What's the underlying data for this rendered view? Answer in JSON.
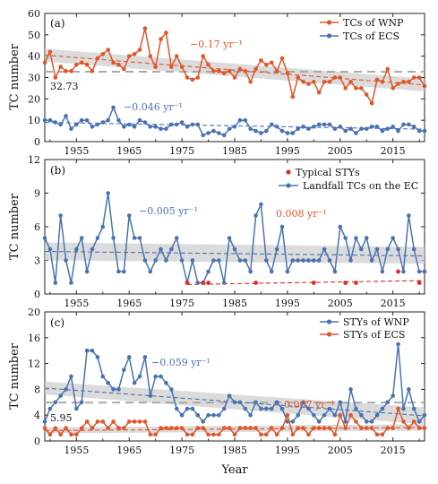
{
  "figure": {
    "x_label": "Year",
    "colors": {
      "orange": "#e0562a",
      "blue": "#4a72b0",
      "red": "#e02a2a",
      "gray_dash": "#a9a9a9",
      "band": "#cfcfcf"
    }
  },
  "chart_data": [
    {
      "type": "line",
      "panel_label": "(a)",
      "ylabel": "TC number",
      "xlim": [
        1949,
        2021
      ],
      "ylim": [
        0,
        60
      ],
      "yticks": [
        0,
        10,
        20,
        30,
        40,
        50,
        60
      ],
      "xticks": [
        1955,
        1965,
        1975,
        1985,
        1995,
        2005,
        2015
      ],
      "legend": {
        "position": "top-right"
      },
      "series": [
        {
          "name": "TCs of WNP",
          "color": "#e0562a",
          "x": [
            1949,
            1950,
            1951,
            1952,
            1953,
            1954,
            1955,
            1956,
            1957,
            1958,
            1959,
            1960,
            1961,
            1962,
            1963,
            1964,
            1965,
            1966,
            1967,
            1968,
            1969,
            1970,
            1971,
            1972,
            1973,
            1974,
            1975,
            1976,
            1977,
            1978,
            1979,
            1980,
            1981,
            1982,
            1983,
            1984,
            1985,
            1986,
            1987,
            1988,
            1989,
            1990,
            1991,
            1992,
            1993,
            1994,
            1995,
            1996,
            1997,
            1998,
            1999,
            2000,
            2001,
            2002,
            2003,
            2004,
            2005,
            2006,
            2007,
            2008,
            2009,
            2010,
            2011,
            2012,
            2013,
            2014,
            2015,
            2016,
            2017,
            2018,
            2019,
            2020,
            2021
          ],
          "y": [
            37,
            42,
            30,
            35,
            33,
            33,
            36,
            37,
            36,
            33,
            39,
            41,
            43,
            37,
            36,
            34,
            40,
            41,
            43,
            53,
            40,
            35,
            48,
            51,
            35,
            40,
            35,
            30,
            29,
            30,
            40,
            36,
            33,
            33,
            32,
            33,
            30,
            34,
            33,
            28,
            34,
            38,
            36,
            37,
            33,
            39,
            32,
            21,
            30,
            28,
            27,
            28,
            23,
            28,
            28,
            30,
            30,
            25,
            28,
            25,
            25,
            22,
            18,
            29,
            28,
            34,
            25,
            27,
            28,
            28,
            30,
            30,
            26
          ],
          "trend_label": "−0.17 yr⁻¹",
          "trend": [
            40.5,
            26.5
          ],
          "mean": 32.73,
          "band": [
            [
              37.5,
              43.5
            ],
            [
              23.5,
              29.5
            ]
          ]
        },
        {
          "name": "TCs of ECS",
          "color": "#4a72b0",
          "x": [
            1949,
            1950,
            1951,
            1952,
            1953,
            1954,
            1955,
            1956,
            1957,
            1958,
            1959,
            1960,
            1961,
            1962,
            1963,
            1964,
            1965,
            1966,
            1967,
            1968,
            1969,
            1970,
            1971,
            1972,
            1973,
            1974,
            1975,
            1976,
            1977,
            1978,
            1979,
            1980,
            1981,
            1982,
            1983,
            1984,
            1985,
            1986,
            1987,
            1988,
            1989,
            1990,
            1991,
            1992,
            1993,
            1994,
            1995,
            1996,
            1997,
            1998,
            1999,
            2000,
            2001,
            2002,
            2003,
            2004,
            2005,
            2006,
            2007,
            2008,
            2009,
            2010,
            2011,
            2012,
            2013,
            2014,
            2015,
            2016,
            2017,
            2018,
            2019,
            2020,
            2021
          ],
          "y": [
            10,
            10,
            9,
            8,
            12,
            6,
            8,
            10,
            10,
            7,
            8,
            9,
            10,
            16,
            10,
            7,
            8,
            7,
            10,
            9,
            7,
            7,
            6,
            6,
            8,
            8,
            9,
            7,
            8,
            8,
            3,
            4,
            5,
            4,
            3,
            6,
            7,
            10,
            10,
            6,
            5,
            4,
            5,
            8,
            7,
            5,
            4,
            4,
            6,
            7,
            6,
            7,
            8,
            8,
            8,
            6,
            7,
            5,
            6,
            4,
            6,
            6,
            7,
            7,
            5,
            6,
            7,
            5,
            8,
            8,
            7,
            5,
            5
          ],
          "trend_label": "−0.046 yr⁻¹",
          "trend": [
            9,
            5.8
          ]
        }
      ]
    },
    {
      "type": "line",
      "panel_label": "(b)",
      "ylabel": "TC number",
      "xlim": [
        1949,
        2021
      ],
      "ylim": [
        0,
        12
      ],
      "yticks": [
        0,
        3,
        6,
        9,
        12
      ],
      "xticks": [
        1955,
        1965,
        1975,
        1985,
        1995,
        2005,
        2015
      ],
      "legend": {
        "position": "top-right"
      },
      "series": [
        {
          "name": "Landfall TCs on the EC",
          "color": "#4a72b0",
          "x": [
            1949,
            1950,
            1951,
            1952,
            1953,
            1954,
            1955,
            1956,
            1957,
            1958,
            1959,
            1960,
            1961,
            1962,
            1963,
            1964,
            1965,
            1966,
            1967,
            1968,
            1969,
            1970,
            1971,
            1972,
            1973,
            1974,
            1975,
            1976,
            1977,
            1978,
            1979,
            1980,
            1981,
            1982,
            1983,
            1984,
            1985,
            1986,
            1987,
            1988,
            1989,
            1990,
            1991,
            1992,
            1993,
            1994,
            1995,
            1996,
            1997,
            1998,
            1999,
            2000,
            2001,
            2002,
            2003,
            2004,
            2005,
            2006,
            2007,
            2008,
            2009,
            2010,
            2011,
            2012,
            2013,
            2014,
            2015,
            2016,
            2017,
            2018,
            2019,
            2020,
            2021
          ],
          "y": [
            5,
            4,
            1,
            7,
            3,
            1,
            4,
            5,
            2,
            4,
            5,
            6,
            9,
            5,
            2,
            2,
            7,
            5,
            5,
            3,
            2,
            3,
            4,
            3,
            4,
            5,
            3,
            1,
            3,
            1,
            1,
            2,
            3,
            3,
            1,
            5,
            4,
            3,
            3,
            2,
            7,
            8,
            3,
            2,
            4,
            6,
            2,
            3,
            3,
            3,
            3,
            3,
            3,
            4,
            3,
            2,
            6,
            5,
            3,
            5,
            4,
            5,
            3,
            4,
            2,
            4,
            5,
            4,
            2,
            7,
            4,
            2,
            2
          ],
          "trend_label": "−0.005 yr⁻¹",
          "trend": [
            3.8,
            3.4
          ],
          "band": [
            [
              3.0,
              4.6
            ],
            [
              2.7,
              4.2
            ]
          ]
        },
        {
          "name": "Typical STYs",
          "color": "#e02a2a",
          "marker_only": true,
          "x": [
            1976,
            1979,
            1980,
            1989,
            2000,
            2006,
            2008,
            2016,
            2020
          ],
          "y": [
            1,
            1,
            1,
            1,
            1,
            1,
            1,
            2,
            1
          ],
          "trend_label": "0.008 yr⁻¹",
          "trend_x": [
            1976,
            2021
          ],
          "trend": [
            0.85,
            1.2
          ]
        }
      ]
    },
    {
      "type": "line",
      "panel_label": "(c)",
      "ylabel": "TC number",
      "xlim": [
        1949,
        2021
      ],
      "ylim": [
        0,
        20
      ],
      "yticks": [
        0,
        4,
        8,
        12,
        16,
        20
      ],
      "xticks": [
        1955,
        1965,
        1975,
        1985,
        1995,
        2005,
        2015
      ],
      "legend": {
        "position": "top-right"
      },
      "series": [
        {
          "name": "STYs of WNP",
          "color": "#4a72b0",
          "x": [
            1949,
            1950,
            1951,
            1952,
            1953,
            1954,
            1955,
            1956,
            1957,
            1958,
            1959,
            1960,
            1961,
            1962,
            1963,
            1964,
            1965,
            1966,
            1967,
            1968,
            1969,
            1970,
            1971,
            1972,
            1973,
            1974,
            1975,
            1976,
            1977,
            1978,
            1979,
            1980,
            1981,
            1982,
            1983,
            1984,
            1985,
            1986,
            1987,
            1988,
            1989,
            1990,
            1991,
            1992,
            1993,
            1994,
            1995,
            1996,
            1997,
            1998,
            1999,
            2000,
            2001,
            2002,
            2003,
            2004,
            2005,
            2006,
            2007,
            2008,
            2009,
            2010,
            2011,
            2012,
            2013,
            2014,
            2015,
            2016,
            2017,
            2018,
            2019,
            2020,
            2021
          ],
          "y": [
            3,
            5,
            6,
            7,
            8,
            10,
            5,
            6,
            14,
            14,
            13,
            10,
            9,
            8,
            8,
            11,
            13,
            9,
            10,
            13,
            7,
            10,
            10,
            9,
            8,
            5,
            4,
            5,
            5,
            4,
            3,
            4,
            4,
            4,
            5,
            7,
            6,
            6,
            5,
            4,
            6,
            5,
            5,
            5,
            6,
            5,
            3,
            3,
            4,
            6,
            5,
            4,
            3,
            4,
            5,
            4,
            6,
            3,
            8,
            5,
            4,
            3,
            3,
            4,
            5,
            6,
            7,
            15,
            5,
            8,
            5,
            3,
            4
          ],
          "trend_label": "−0.059 yr⁻¹",
          "trend": [
            8.2,
            3.9
          ],
          "mean": 5.95,
          "band": [
            [
              7.2,
              9.2
            ],
            [
              2.6,
              5.2
            ]
          ]
        },
        {
          "name": "STYs of ECS",
          "color": "#e0562a",
          "x": [
            1949,
            1950,
            1951,
            1952,
            1953,
            1954,
            1955,
            1956,
            1957,
            1958,
            1959,
            1960,
            1961,
            1962,
            1963,
            1964,
            1965,
            1966,
            1967,
            1968,
            1969,
            1970,
            1971,
            1972,
            1973,
            1974,
            1975,
            1976,
            1977,
            1978,
            1979,
            1980,
            1981,
            1982,
            1983,
            1984,
            1985,
            1986,
            1987,
            1988,
            1989,
            1990,
            1991,
            1992,
            1993,
            1994,
            1995,
            1996,
            1997,
            1998,
            1999,
            2000,
            2001,
            2002,
            2003,
            2004,
            2005,
            2006,
            2007,
            2008,
            2009,
            2010,
            2011,
            2012,
            2013,
            2014,
            2015,
            2016,
            2017,
            2018,
            2019,
            2020,
            2021
          ],
          "y": [
            2,
            1,
            2,
            1,
            2,
            1,
            1,
            2,
            3,
            2,
            3,
            3,
            2,
            3,
            2,
            2,
            3,
            3,
            3,
            3,
            1,
            1,
            2,
            2,
            2,
            2,
            2,
            1,
            1,
            2,
            2,
            1,
            1,
            1,
            2,
            2,
            1,
            2,
            2,
            2,
            2,
            1,
            1,
            2,
            1,
            2,
            4,
            1,
            2,
            2,
            1,
            2,
            2,
            2,
            2,
            1,
            4,
            2,
            4,
            3,
            2,
            2,
            2,
            1,
            1,
            2,
            2,
            5,
            3,
            2,
            3,
            2,
            2
          ],
          "trend_label": "0.007 yr⁻¹",
          "trend": [
            1.6,
            2.1
          ],
          "band": [
            [
              1.2,
              2.1
            ],
            [
              1.6,
              2.6
            ]
          ]
        }
      ]
    }
  ]
}
